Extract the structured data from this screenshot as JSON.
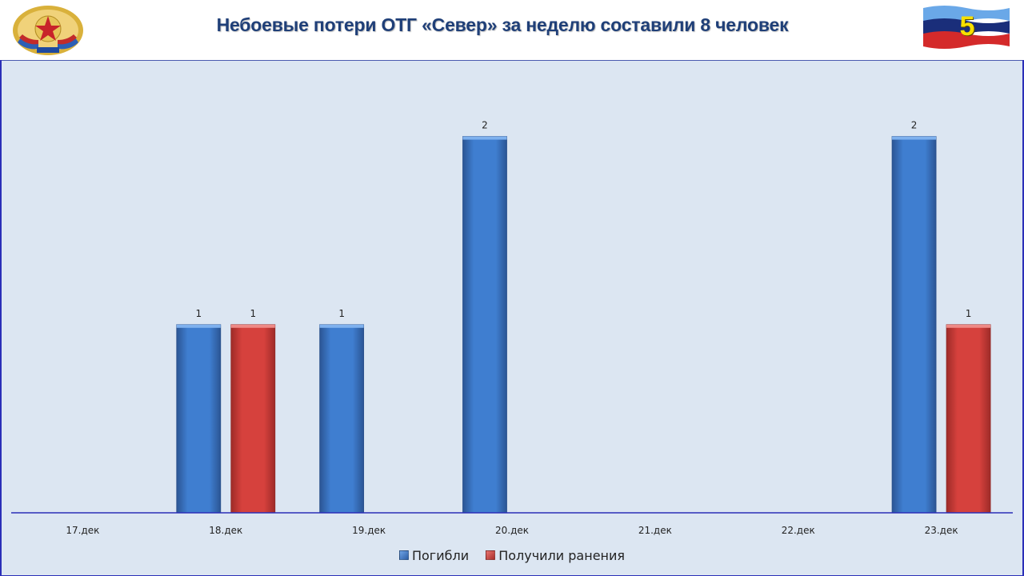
{
  "header": {
    "title": "Небоевые потери ОТГ «Север» за неделю составили 8 человек",
    "slide_number": "5",
    "emblem_icon": "lpr-coat-of-arms-icon",
    "flag_icon": "lpr-flag-icon"
  },
  "colors": {
    "killed": "#3f7ed0",
    "wounded": "#d6413d",
    "plot_bg": "#dce6f2",
    "axis": "#2b2fb8"
  },
  "chart_data": {
    "type": "bar",
    "title": "",
    "xlabel": "",
    "ylabel": "",
    "ylim": [
      0,
      2.3
    ],
    "grid": false,
    "legend_position": "bottom",
    "categories": [
      "17.дек",
      "18.дек",
      "19.дек",
      "20.дек",
      "21.дек",
      "22.дек",
      "23.дек"
    ],
    "series": [
      {
        "name": "Погибли",
        "values": [
          0,
          1,
          1,
          2,
          0,
          0,
          2
        ]
      },
      {
        "name": "Получили ранения",
        "values": [
          0,
          1,
          0,
          0,
          0,
          0,
          1
        ]
      }
    ]
  }
}
